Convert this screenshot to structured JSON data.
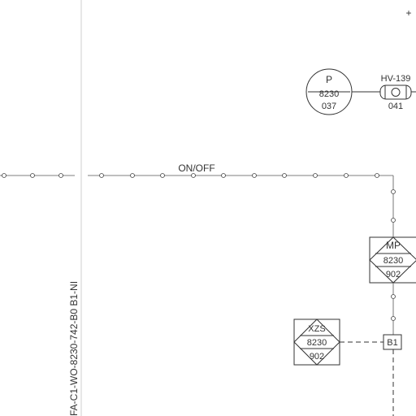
{
  "diagram": {
    "signal_label": "ON/OFF",
    "line_number": "FA-C1-WO-8230-742-B0 B1-NI",
    "corner_mark": "+",
    "indicator_p": {
      "tag": "P",
      "number": "8230",
      "loop": "037"
    },
    "valve_hv": {
      "tag": "HV-139",
      "loop": "041"
    },
    "motor_mp": {
      "tag": "MP",
      "number": "8230",
      "loop": "902"
    },
    "switch_xzs": {
      "tag": "XZS",
      "number": "8230",
      "loop": "902"
    },
    "junction_box": {
      "label": "B1"
    },
    "colors": {
      "line": "#333333",
      "guide": "#cfcfcf",
      "background": "#ffffff"
    }
  }
}
